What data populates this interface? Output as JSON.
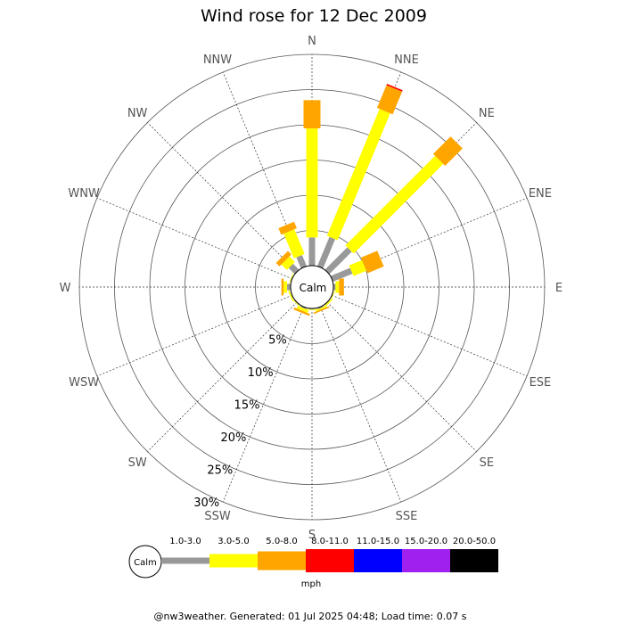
{
  "chart_data": {
    "type": "wind-rose",
    "title": "Wind rose for 12 Dec 2009",
    "directions": [
      "N",
      "NNE",
      "NE",
      "ENE",
      "E",
      "ESE",
      "SE",
      "SSE",
      "S",
      "SSW",
      "SW",
      "WSW",
      "W",
      "WNW",
      "NW",
      "NNW"
    ],
    "percent_ticks": [
      "5%",
      "10%",
      "15%",
      "20%",
      "25%",
      "30%"
    ],
    "rmax_percent": 30,
    "calm_label": "Calm",
    "unit": "mph",
    "speed_bins": [
      {
        "label": "1.0-3.0",
        "color": "#999999"
      },
      {
        "label": "3.0-5.0",
        "color": "#ffff00"
      },
      {
        "label": "5.0-8.0",
        "color": "#ffa500"
      },
      {
        "label": "8.0-11.0",
        "color": "#ff0000"
      },
      {
        "label": "11.0-15.0",
        "color": "#0000ff"
      },
      {
        "label": "15.0-20.0",
        "color": "#a020f0"
      },
      {
        "label": "20.0-50.0",
        "color": "#000000"
      }
    ],
    "cumulative_percent": {
      "N": [
        4.0,
        19.5,
        23.5
      ],
      "NNE": [
        4.5,
        24.0,
        27.5,
        27.7
      ],
      "NE": [
        4.5,
        22.5,
        26.0
      ],
      "ENE": [
        3.0,
        5.0,
        7.5
      ],
      "E": [
        0.3,
        0.8,
        1.5
      ],
      "ESE": [
        0.1,
        0.2
      ],
      "SE": [
        0.1,
        0.3
      ],
      "SSE": [
        0.2,
        0.4,
        0.6
      ],
      "S": [
        0.1,
        0.2
      ],
      "SSW": [
        0.2,
        0.6,
        0.9
      ],
      "SW": [
        0.1,
        0.2
      ],
      "WSW": [
        0.1,
        0.3
      ],
      "W": [
        0.5,
        1.0,
        1.3
      ],
      "WNW": [
        0.1,
        0.2
      ],
      "NW": [
        1.2,
        2.3,
        3.0
      ],
      "NNW": [
        1.7,
        5.5,
        6.5
      ]
    }
  },
  "footer": "@nw3weather. Generated: 01 Jul 2025 04:48; Load time: 0.07 s"
}
